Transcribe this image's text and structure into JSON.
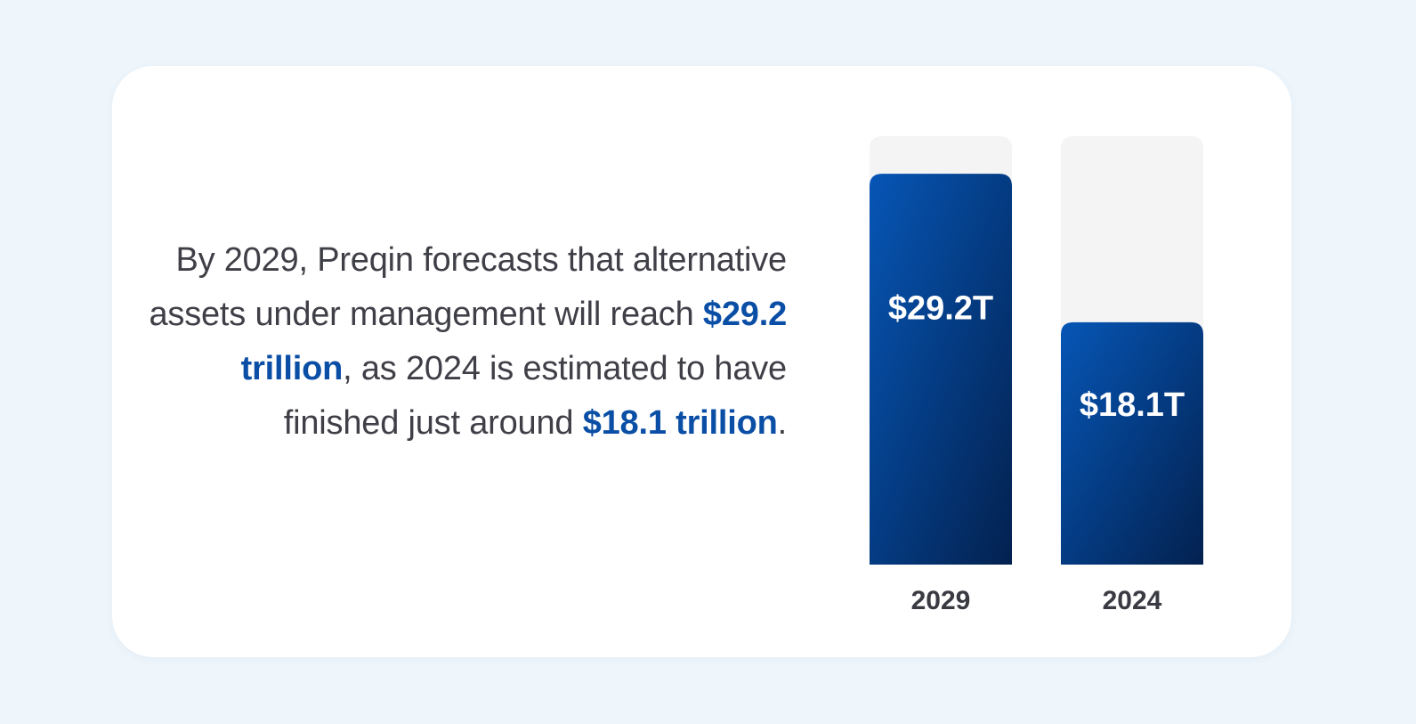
{
  "statement": {
    "part1": "By 2029, Preqin forecasts that alternative assets under management will reach ",
    "highlight1": "$29.2 trillion",
    "part2": ", as 2024 is estimated to have finished just around ",
    "highlight2": "$18.1 trillion",
    "part3": "."
  },
  "colors": {
    "background": "#eef6fc",
    "card": "#ffffff",
    "text": "#3f3f47",
    "highlight": "#0a4ea6",
    "bar_gradient_start": "#0656b6",
    "bar_gradient_end": "#03214f",
    "track": "#f4f4f5"
  },
  "chart_data": {
    "type": "bar",
    "categories": [
      "2029",
      "2024"
    ],
    "values": [
      29.2,
      18.1
    ],
    "value_labels": [
      "$29.2T",
      "$18.1T"
    ],
    "unit": "trillion USD",
    "ylim": [
      0,
      32
    ],
    "title": "",
    "xlabel": "",
    "ylabel": "",
    "grid": false,
    "legend": "none"
  }
}
